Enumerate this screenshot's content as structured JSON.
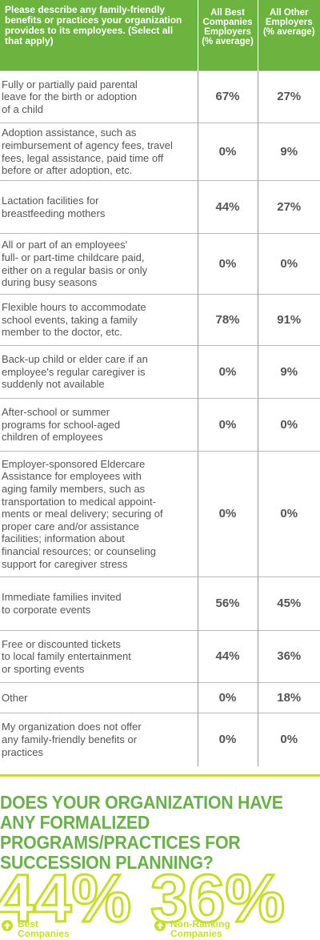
{
  "table": {
    "header": [
      "Please describe any family-friendly benefits or practices your organization provides to its employees. (Select all that apply)",
      "All Best Companies Employers (% average)",
      "All Other Employers (% average)"
    ],
    "rows": [
      [
        "Fully or partially paid parental\nleave for the birth or adoption\nof a child",
        "67%",
        "27%"
      ],
      [
        "Adoption assistance, such as\nreimbursement of agency fees, travel\nfees, legal assistance, paid time off\nbefore or after adoption, etc.",
        "0%",
        "9%"
      ],
      [
        "Lactation facilities for\nbreastfeeding mothers",
        "44%",
        "27%"
      ],
      [
        "All or part of an employees'\nfull- or part-time childcare paid,\neither on a regular basis or only\nduring busy seasons",
        "0%",
        "0%"
      ],
      [
        "Flexible hours to accommodate\nschool events, taking a family\nmember to the doctor, etc.",
        "78%",
        "91%"
      ],
      [
        "Back-up child or elder care if an\nemployee's regular caregiver is\nsuddenly not available",
        "0%",
        "9%"
      ],
      [
        "After-school or summer\nprograms for school-aged\nchildren of employees",
        "0%",
        "0%"
      ],
      [
        "Employer-sponsored Eldercare\nAssistance for employees with\naging family members, such as\ntransportation to medical appoint-\nments or meal delivery; securing of\nproper care and/or assistance\nfacilities; information about\nfinancial resources; or counseling\nsupport for caregiver stress",
        "0%",
        "0%"
      ],
      [
        "Immediate families invited\nto corporate events",
        "56%",
        "45%"
      ],
      [
        "Free or discounted tickets\nto local family entertainment\nor sporting events",
        "44%",
        "36%"
      ],
      [
        "Other",
        "0%",
        "18%"
      ],
      [
        "My organization does not offer\nany family-friendly benefits or\npractices",
        "0%",
        "0%"
      ]
    ]
  },
  "section": {
    "title": "DOES YOUR ORGANIZATION HAVE ANY FORMALIZED PROGRAMS/PRACTICES FOR SUCCESSION PLANNING?",
    "stats": [
      {
        "value": "44%",
        "label": "Best\nCompanies"
      },
      {
        "value": "36%",
        "label": "Non-Ranking\nCompanies"
      }
    ]
  }
}
